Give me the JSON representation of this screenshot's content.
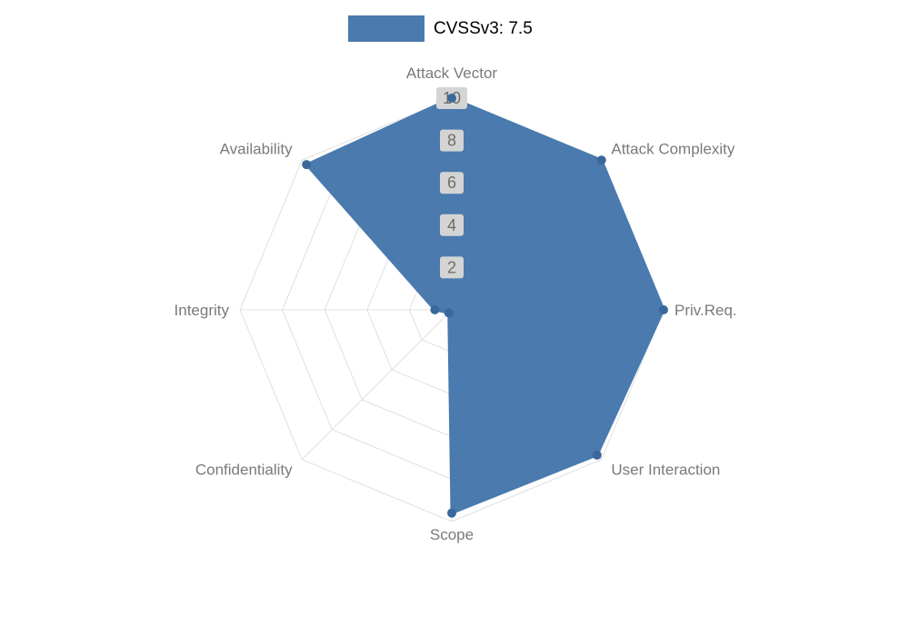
{
  "chart_data": {
    "type": "radar",
    "title": "",
    "categories": [
      "Attack Vector",
      "Attack Complexity",
      "Priv.Req.",
      "User Interaction",
      "Scope",
      "Confidentiality",
      "Integrity",
      "Availability"
    ],
    "series": [
      {
        "name": "CVSSv3: 7.5",
        "values": [
          10,
          10,
          10,
          9.7,
          9.6,
          0.2,
          0.8,
          9.7
        ]
      }
    ],
    "scale": {
      "min": 0,
      "max": 10,
      "ticks": [
        2,
        4,
        6,
        8,
        10
      ]
    },
    "legend_position": "top",
    "grid": true,
    "colors": {
      "fill": "#4a7aae",
      "stroke": "#4a7aae",
      "point": "#3a689a",
      "grid": "#e0e0e0",
      "tick_text": "#6e6e6e",
      "tick_backdrop": "#d4d4d4",
      "axis_label": "#7a7a7a"
    }
  }
}
